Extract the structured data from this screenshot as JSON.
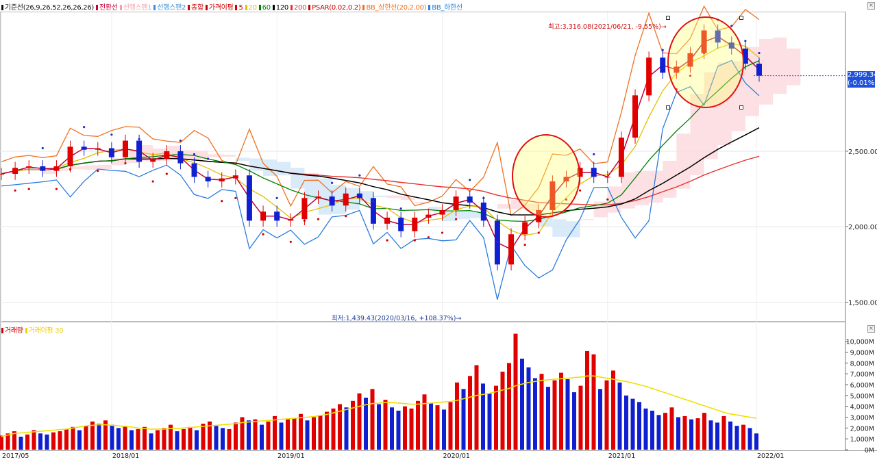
{
  "legend_main": [
    {
      "text": "기준선(26,9,26,52,26,26,26)",
      "color": "#111111"
    },
    {
      "text": "전환선",
      "color": "#c0003a"
    },
    {
      "text": "선행스팬1",
      "color": "#f4a0a8"
    },
    {
      "text": "선행스팬2",
      "color": "#3a8fd8"
    },
    {
      "text": "종합",
      "color": "#cc0000"
    },
    {
      "text": "가격이평",
      "color": "#cc0000"
    },
    {
      "text": "5",
      "color": "#cc0000"
    },
    {
      "text": "20",
      "color": "#e0c000"
    },
    {
      "text": "60",
      "color": "#008000"
    },
    {
      "text": "120",
      "color": "#000000"
    },
    {
      "text": "200",
      "color": "#e83030"
    },
    {
      "text": "PSAR(0.02,0.2)",
      "color": "#cc0000"
    },
    {
      "text": "BB_상한선(20,2.00)",
      "color": "#f07020"
    },
    {
      "text": "BB_하한선",
      "color": "#2080e0"
    }
  ],
  "legend_volume": [
    {
      "text": "거래량",
      "color": "#cc0000"
    },
    {
      "text": "거래이평 30",
      "color": "#f0d000"
    }
  ],
  "controls": {
    "close": "×"
  },
  "current_price": {
    "value": "2,999.34",
    "change": "(-0.01%)"
  },
  "annotation_high": "최고:3,316.08(2021/06/21, -9.55%)→",
  "annotation_low": "최저:1,439.43(2020/03/16, +108.37%)→",
  "chart_data": {
    "type": "candlestick",
    "title": "",
    "x_tick_labels": [
      "2017/05",
      "2018/01",
      "2019/01",
      "2020/01",
      "2021/01",
      "2022/01"
    ],
    "price_axis": {
      "ticks": [
        "2,500.00",
        "2,000.00",
        "1,500.00"
      ],
      "tick_values": [
        2500,
        2000,
        1500
      ],
      "ylim": [
        1380,
        3420
      ]
    },
    "volume_axis": {
      "ticks": [
        "10,000M",
        "9,000M",
        "8,000M",
        "7,000M",
        "6,000M",
        "5,000M",
        "4,000M",
        "3,000M",
        "2,000M",
        "1,000M",
        "0M"
      ],
      "ylim": [
        0,
        10800
      ]
    },
    "period_months": 56,
    "first_period": "2017/05",
    "monthly_closes": [
      2350,
      2390,
      2400,
      2370,
      2400,
      2530,
      2510,
      2520,
      2460,
      2570,
      2430,
      2450,
      2500,
      2420,
      2330,
      2300,
      2320,
      2340,
      2040,
      2100,
      2040,
      2050,
      2190,
      2200,
      2140,
      2220,
      2190,
      2020,
      2060,
      1970,
      2060,
      2080,
      2110,
      2200,
      2160,
      2040,
      1750,
      1950,
      2030,
      2110,
      2300,
      2330,
      2390,
      2330,
      2330,
      2590,
      2870,
      3120,
      3020,
      3060,
      3150,
      3300,
      3220,
      3180,
      3080,
      3000
    ],
    "weekly_volume_M": [
      1300,
      1500,
      1700,
      1200,
      1400,
      1800,
      1500,
      1400,
      1600,
      1700,
      1900,
      2100,
      1800,
      2200,
      2600,
      2400,
      2700,
      2300,
      2000,
      2200,
      1800,
      1900,
      2100,
      1500,
      1800,
      2000,
      2300,
      1700,
      1900,
      2100,
      1800,
      2400,
      2600,
      2200,
      2000,
      1900,
      2500,
      3000,
      2700,
      2800,
      2300,
      2600,
      3100,
      2500,
      2800,
      2900,
      3300,
      2700,
      3000,
      3200,
      3500,
      3800,
      4200,
      3900,
      4500,
      5200,
      4800,
      5600,
      4200,
      4600,
      3900,
      3600,
      4000,
      3800,
      4500,
      5100,
      4300,
      4100,
      3700,
      4400,
      6200,
      5600,
      6800,
      7800,
      6100,
      5200,
      5900,
      7200,
      8000,
      10700,
      8400,
      7600,
      6600,
      7000,
      5800,
      6400,
      7100,
      6500,
      5300,
      5900,
      9100,
      8800,
      5600,
      6400,
      7300,
      6200,
      5000,
      4700,
      4400,
      3800,
      3600,
      3200,
      3400,
      3900,
      3000,
      3100,
      2800,
      2900,
      3400,
      2700,
      2500,
      3100,
      2600,
      2200,
      2300,
      2000,
      1500
    ],
    "volume_ma30_M": [
      1200,
      1350,
      1500,
      1550,
      1600,
      1650,
      1700,
      1750,
      1800,
      1850,
      1900,
      2000,
      2100,
      2200,
      2250,
      2300,
      2300,
      2250,
      2200,
      2150,
      2100,
      2000,
      1950,
      1900,
      1900,
      1900,
      1950,
      1950,
      2000,
      2050,
      2100,
      2150,
      2200,
      2250,
      2300,
      2350,
      2400,
      2500,
      2550,
      2600,
      2650,
      2700,
      2750,
      2800,
      2850,
      2900,
      2950,
      3000,
      3050,
      3150,
      3250,
      3400,
      3550,
      3700,
      3850,
      4000,
      4150,
      4250,
      4300,
      4350,
      4350,
      4300,
      4250,
      4200,
      4200,
      4250,
      4300,
      4350,
      4400,
      4450,
      4550,
      4700,
      4850,
      5000,
      5100,
      5200,
      5350,
      5500,
      5650,
      5900,
      6050,
      6200,
      6300,
      6400,
      6450,
      6500,
      6550,
      6600,
      6650,
      6700,
      6800,
      6800,
      6700,
      6600,
      6500,
      6400,
      6300,
      6150,
      6000,
      5850,
      5650,
      5450,
      5250,
      5050,
      4850,
      4650,
      4450,
      4250,
      4050,
      3850,
      3650,
      3450,
      3300,
      3200,
      3100,
      3000,
      2900
    ]
  }
}
